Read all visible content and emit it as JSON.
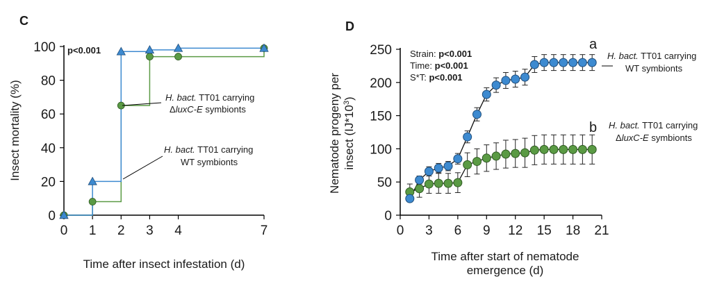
{
  "colors": {
    "blue": "#3d8ad0",
    "green": "#5a9a44",
    "blue_edge": "#1f4d7a",
    "green_edge": "#2f5a22",
    "axis": "#000000"
  },
  "chart_data": [
    {
      "panel": "C",
      "type": "line",
      "step": true,
      "xlabel": "Time after insect infestation (d)",
      "ylabel": "Insect mortality (%)",
      "xticks": [
        0,
        1,
        2,
        3,
        4,
        7
      ],
      "yticks": [
        0,
        20,
        40,
        60,
        80,
        100
      ],
      "xlim": [
        0,
        7
      ],
      "ylim": [
        0,
        100
      ],
      "pvalue": "p<0.001",
      "series": [
        {
          "name": "WT symbionts",
          "color": "#3d8ad0",
          "marker": "triangle",
          "x": [
            0,
            1,
            2,
            3,
            4,
            7
          ],
          "y": [
            0,
            20,
            97,
            98,
            99,
            99
          ],
          "label_prefix": "H. bact.",
          "label_rest": " TT01 carrying",
          "label_line2": "WT symbionts"
        },
        {
          "name": "ΔluxC-E symbionts",
          "color": "#5a9a44",
          "marker": "circle",
          "x": [
            0,
            1,
            2,
            3,
            4,
            7
          ],
          "y": [
            0,
            8,
            65,
            94,
            94,
            99
          ],
          "label_prefix": "H. bact.",
          "label_rest": " TT01 carrying",
          "label_line2_pre": "Δ",
          "label_line2_italic": "luxC-E",
          "label_line2_post": " symbionts"
        }
      ]
    },
    {
      "panel": "D",
      "type": "line",
      "xlabel_line1": "Time after start of nematode",
      "xlabel_line2": "emergence (d)",
      "ylabel_line1": "Nematode progeny per",
      "ylabel_line2_pre": "insect (IJ*10",
      "ylabel_line2_sup": "3",
      "ylabel_line2_post": ")",
      "xticks": [
        0,
        3,
        6,
        9,
        12,
        15,
        18,
        21
      ],
      "yticks": [
        0,
        50,
        100,
        150,
        200,
        250
      ],
      "xlim": [
        0,
        21
      ],
      "ylim": [
        0,
        250
      ],
      "stats": [
        {
          "label": "Strain: ",
          "value": "p<0.001"
        },
        {
          "label": "Time: ",
          "value": "p<0.001"
        },
        {
          "label": "S*T: ",
          "value": "p<0.001"
        }
      ],
      "series": [
        {
          "name": "WT symbionts",
          "color": "#3d8ad0",
          "group_letter": "a",
          "x": [
            1,
            2,
            3,
            4,
            5,
            6,
            7,
            8,
            9,
            10,
            11,
            12,
            13,
            14,
            15,
            16,
            17,
            18,
            19,
            20
          ],
          "y": [
            25,
            53,
            66,
            71,
            74,
            85,
            118,
            152,
            182,
            196,
            203,
            205,
            208,
            227,
            230,
            230,
            230,
            230,
            230,
            230
          ],
          "err": [
            4,
            6,
            7,
            7,
            7,
            8,
            9,
            10,
            10,
            11,
            12,
            12,
            12,
            12,
            12,
            12,
            12,
            12,
            12,
            12
          ],
          "label_prefix": "H. bact.",
          "label_rest": " TT01 carrying",
          "label_line2": "WT symbionts"
        },
        {
          "name": "ΔluxC-E symbionts",
          "color": "#5a9a44",
          "group_letter": "b",
          "x": [
            1,
            2,
            3,
            4,
            5,
            6,
            7,
            8,
            9,
            10,
            11,
            12,
            13,
            14,
            15,
            16,
            17,
            18,
            19,
            20
          ],
          "y": [
            35,
            40,
            47,
            48,
            48,
            49,
            76,
            81,
            86,
            89,
            92,
            93,
            94,
            98,
            99,
            99,
            99,
            99,
            99,
            99
          ],
          "err": [
            12,
            13,
            14,
            15,
            15,
            15,
            18,
            19,
            20,
            20,
            21,
            21,
            22,
            22,
            22,
            22,
            22,
            22,
            22,
            22
          ],
          "label_prefix": "H. bact.",
          "label_rest": " TT01 carrying",
          "label_line2_pre": "Δ",
          "label_line2_italic": "luxC-E",
          "label_line2_post": " symbionts"
        }
      ]
    }
  ]
}
